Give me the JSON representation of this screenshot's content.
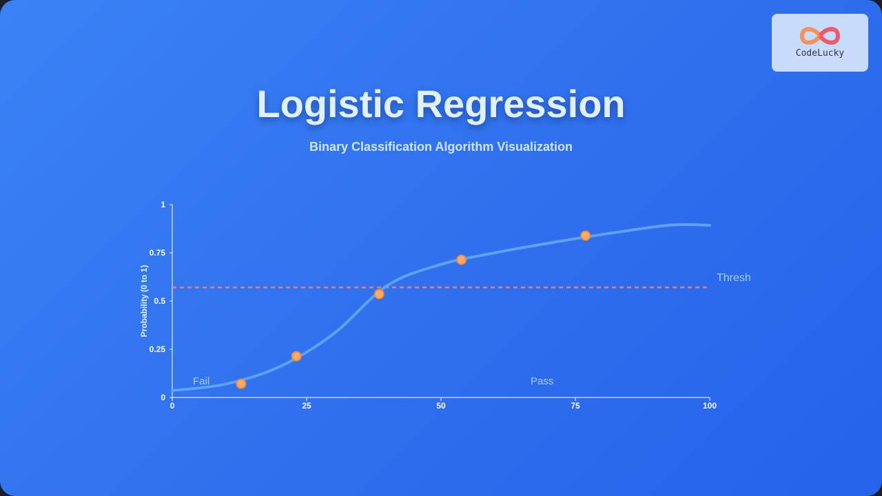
{
  "logo": {
    "text": "CodeLucky"
  },
  "chart_data": {
    "type": "line",
    "title": "Logistic Regression",
    "subtitle": "Binary Classification Algorithm Visualization",
    "y_label": "Probability (0 to 1)",
    "xlim": [
      0,
      100
    ],
    "ylim": [
      0,
      1
    ],
    "xticks": [
      0,
      25,
      50,
      75,
      100
    ],
    "yticks": [
      0,
      0.25,
      0.5,
      0.75,
      1
    ],
    "series": [
      {
        "style": "line",
        "color": "#5ea2f4",
        "x": [
          0,
          10,
          20,
          30,
          40,
          50,
          60,
          70,
          80,
          92.3,
          100
        ],
        "values": [
          0.036,
          0.07,
          0.16,
          0.33,
          0.58,
          0.69,
          0.75,
          0.8,
          0.845,
          0.893,
          0.893
        ]
      },
      {
        "style": "scatter",
        "color": "#fdab6a",
        "x": [
          12.8,
          23.1,
          38.5,
          53.8,
          76.9
        ],
        "values": [
          0.071,
          0.214,
          0.536,
          0.714,
          0.839
        ]
      }
    ],
    "threshold": {
      "value": 0.571,
      "label": "Thresh",
      "color": "#f27a7a"
    },
    "annotations": [
      "Fail",
      "Pass"
    ]
  }
}
